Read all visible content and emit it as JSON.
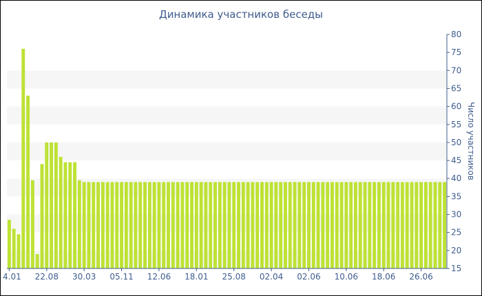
{
  "chart_data": {
    "type": "bar",
    "title": "Динамика участников беседы",
    "ylabel": "Число участников",
    "xlabel": "",
    "ylim": [
      15,
      80
    ],
    "y_ticks": [
      15,
      20,
      25,
      30,
      35,
      40,
      45,
      50,
      55,
      60,
      65,
      70,
      75,
      80
    ],
    "y_axis_position": "right",
    "x_tick_labels": [
      {
        "index": 0,
        "label": "4.01"
      },
      {
        "index": 8,
        "label": "22.08"
      },
      {
        "index": 16,
        "label": "30.03"
      },
      {
        "index": 24,
        "label": "05.11"
      },
      {
        "index": 32,
        "label": "12.06"
      },
      {
        "index": 40,
        "label": "18.01"
      },
      {
        "index": 48,
        "label": "25.08"
      },
      {
        "index": 56,
        "label": "02.04"
      },
      {
        "index": 64,
        "label": "02.06"
      },
      {
        "index": 72,
        "label": "10.06"
      },
      {
        "index": 80,
        "label": "18.06"
      },
      {
        "index": 88,
        "label": "26.06"
      }
    ],
    "values": [
      28.5,
      26,
      24.5,
      76,
      63,
      39.5,
      19,
      44,
      50,
      50,
      50,
      46,
      44.5,
      44.5,
      44.5,
      39.5,
      39,
      39,
      39,
      39,
      39,
      39,
      39,
      39,
      39,
      39,
      39,
      39,
      39,
      39,
      39,
      39,
      39,
      39,
      39,
      39,
      39,
      39,
      39,
      39,
      39,
      39,
      39,
      39,
      39,
      39,
      39,
      39,
      39,
      39,
      39,
      39,
      39,
      39,
      39,
      39,
      39,
      39,
      39,
      39,
      39,
      39,
      39,
      39,
      39,
      39,
      39,
      39,
      39,
      39,
      39,
      39,
      39,
      39,
      39,
      39,
      39,
      39,
      39,
      39,
      39,
      39,
      39,
      39,
      39,
      39,
      39,
      39,
      39,
      39,
      39,
      39,
      39,
      39
    ],
    "grid": "alternating horizontal bands",
    "colors": {
      "bar": "#bde234",
      "band": "#f6f6f6",
      "text": "#3e5c8e",
      "axis": "#3e5c8e"
    }
  }
}
